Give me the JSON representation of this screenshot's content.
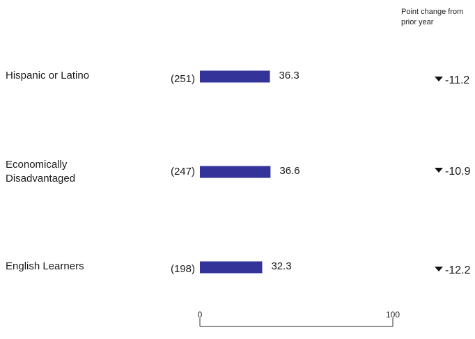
{
  "header": {
    "change_label": "Point change from prior year"
  },
  "chart_data": {
    "type": "bar",
    "orientation": "horizontal",
    "categories": [
      "Hispanic or Latino",
      "Economically Disadvantaged",
      "English Learners"
    ],
    "counts": [
      "(251)",
      "(247)",
      "(198)"
    ],
    "values": [
      36.3,
      36.6,
      32.3
    ],
    "changes": [
      -11.2,
      -10.9,
      -12.2
    ],
    "xlim": [
      0,
      100
    ],
    "ticks": [
      0,
      100
    ],
    "colors": {
      "bar": "#33339a",
      "text": "#1a1a1a"
    }
  }
}
